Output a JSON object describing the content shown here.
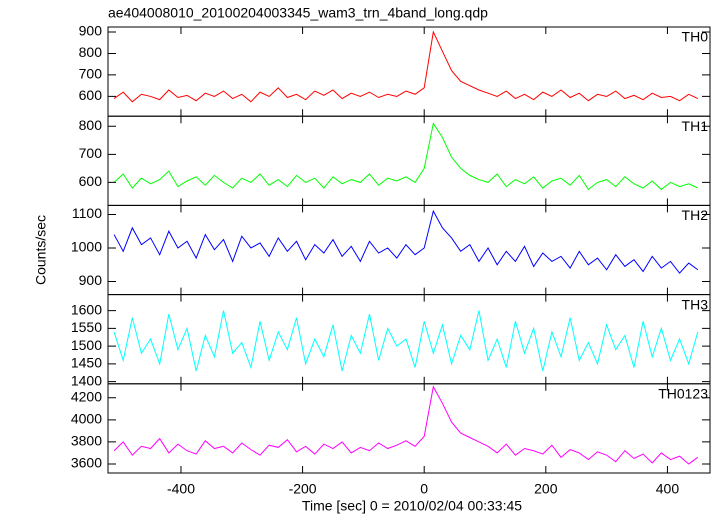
{
  "title": "ae404008010_20100204003345_wam3_trn_4band_long.qdp",
  "ylabel": "Counts/sec",
  "xlabel": "Time [sec] 0 = 2010/02/04 00:33:45",
  "chart_data": [
    {
      "type": "line",
      "x": [
        -510,
        -495,
        -480,
        -465,
        -450,
        -435,
        -420,
        -405,
        -390,
        -375,
        -360,
        -345,
        -330,
        -315,
        -300,
        -285,
        -270,
        -255,
        -240,
        -225,
        -210,
        -195,
        -180,
        -165,
        -150,
        -135,
        -120,
        -105,
        -90,
        -75,
        -60,
        -45,
        -30,
        -15,
        0,
        15,
        30,
        45,
        60,
        75,
        90,
        105,
        120,
        135,
        150,
        165,
        180,
        195,
        210,
        225,
        240,
        255,
        270,
        285,
        300,
        315,
        330,
        345,
        360,
        375,
        390,
        405,
        420,
        435,
        450
      ],
      "series": [
        {
          "name": "TH0",
          "color": "#ff0000",
          "values": [
            590,
            620,
            575,
            610,
            600,
            585,
            630,
            595,
            605,
            580,
            615,
            600,
            625,
            590,
            610,
            575,
            620,
            600,
            640,
            595,
            610,
            585,
            625,
            605,
            630,
            590,
            615,
            600,
            620,
            595,
            610,
            600,
            625,
            610,
            640,
            900,
            810,
            720,
            670,
            650,
            630,
            615,
            600,
            625,
            590,
            610,
            585,
            620,
            600,
            630,
            595,
            615,
            580,
            610,
            600,
            625,
            590,
            605,
            585,
            615,
            595,
            600,
            580,
            610,
            590
          ]
        }
      ],
      "xlim": [
        -520,
        470
      ],
      "xticks": [
        -400,
        -200,
        0,
        200,
        400
      ],
      "ylim": [
        508,
        923
      ],
      "yticks": [
        600,
        700,
        800,
        900
      ]
    },
    {
      "type": "line",
      "x": [
        -510,
        -495,
        -480,
        -465,
        -450,
        -435,
        -420,
        -405,
        -390,
        -375,
        -360,
        -345,
        -330,
        -315,
        -300,
        -285,
        -270,
        -255,
        -240,
        -225,
        -210,
        -195,
        -180,
        -165,
        -150,
        -135,
        -120,
        -105,
        -90,
        -75,
        -60,
        -45,
        -30,
        -15,
        0,
        15,
        30,
        45,
        60,
        75,
        90,
        105,
        120,
        135,
        150,
        165,
        180,
        195,
        210,
        225,
        240,
        255,
        270,
        285,
        300,
        315,
        330,
        345,
        360,
        375,
        390,
        405,
        420,
        435,
        450
      ],
      "series": [
        {
          "name": "TH1",
          "color": "#00ff00",
          "values": [
            600,
            630,
            580,
            615,
            595,
            610,
            640,
            585,
            605,
            620,
            590,
            625,
            600,
            580,
            615,
            600,
            630,
            590,
            610,
            585,
            625,
            600,
            615,
            580,
            620,
            595,
            610,
            600,
            630,
            590,
            615,
            605,
            620,
            600,
            650,
            810,
            760,
            690,
            650,
            625,
            610,
            600,
            630,
            585,
            610,
            595,
            620,
            580,
            605,
            615,
            590,
            625,
            575,
            600,
            610,
            585,
            620,
            595,
            580,
            605,
            575,
            600,
            585,
            595,
            580
          ]
        }
      ],
      "xlim": [
        -520,
        470
      ],
      "xticks": [
        -400,
        -200,
        0,
        200,
        400
      ],
      "ylim": [
        518,
        836
      ],
      "yticks": [
        600,
        700,
        800
      ]
    },
    {
      "type": "line",
      "x": [
        -510,
        -495,
        -480,
        -465,
        -450,
        -435,
        -420,
        -405,
        -390,
        -375,
        -360,
        -345,
        -330,
        -315,
        -300,
        -285,
        -270,
        -255,
        -240,
        -225,
        -210,
        -195,
        -180,
        -165,
        -150,
        -135,
        -120,
        -105,
        -90,
        -75,
        -60,
        -45,
        -30,
        -15,
        0,
        15,
        30,
        45,
        60,
        75,
        90,
        105,
        120,
        135,
        150,
        165,
        180,
        195,
        210,
        225,
        240,
        255,
        270,
        285,
        300,
        315,
        330,
        345,
        360,
        375,
        390,
        405,
        420,
        435,
        450
      ],
      "series": [
        {
          "name": "TH2",
          "color": "#0000ff",
          "values": [
            1040,
            990,
            1060,
            1010,
            1030,
            980,
            1050,
            1000,
            1020,
            970,
            1040,
            995,
            1025,
            960,
            1035,
            1000,
            1015,
            975,
            1030,
            990,
            1020,
            965,
            1010,
            985,
            1025,
            975,
            1005,
            960,
            1020,
            985,
            1000,
            970,
            1010,
            980,
            1000,
            1110,
            1060,
            1030,
            990,
            1010,
            960,
            1000,
            950,
            990,
            960,
            1005,
            945,
            985,
            960,
            975,
            940,
            990,
            950,
            970,
            935,
            980,
            945,
            965,
            930,
            975,
            940,
            960,
            925,
            955,
            935
          ]
        }
      ],
      "xlim": [
        -520,
        470
      ],
      "xticks": [
        -400,
        -200,
        0,
        200,
        400
      ],
      "ylim": [
        861,
        1127
      ],
      "yticks": [
        900,
        1000,
        1100
      ]
    },
    {
      "type": "line",
      "x": [
        -510,
        -495,
        -480,
        -465,
        -450,
        -435,
        -420,
        -405,
        -390,
        -375,
        -360,
        -345,
        -330,
        -315,
        -300,
        -285,
        -270,
        -255,
        -240,
        -225,
        -210,
        -195,
        -180,
        -165,
        -150,
        -135,
        -120,
        -105,
        -90,
        -75,
        -60,
        -45,
        -30,
        -15,
        0,
        15,
        30,
        45,
        60,
        75,
        90,
        105,
        120,
        135,
        150,
        165,
        180,
        195,
        210,
        225,
        240,
        255,
        270,
        285,
        300,
        315,
        330,
        345,
        360,
        375,
        390,
        405,
        420,
        435,
        450
      ],
      "series": [
        {
          "name": "TH3",
          "color": "#00ffff",
          "values": [
            1540,
            1460,
            1580,
            1480,
            1520,
            1450,
            1590,
            1490,
            1550,
            1430,
            1530,
            1470,
            1600,
            1480,
            1510,
            1440,
            1570,
            1460,
            1540,
            1490,
            1580,
            1450,
            1520,
            1470,
            1560,
            1430,
            1530,
            1480,
            1590,
            1460,
            1550,
            1500,
            1520,
            1440,
            1570,
            1480,
            1560,
            1450,
            1530,
            1490,
            1600,
            1460,
            1520,
            1440,
            1570,
            1480,
            1550,
            1430,
            1540,
            1470,
            1580,
            1460,
            1510,
            1450,
            1560,
            1490,
            1530,
            1440,
            1570,
            1470,
            1550,
            1460,
            1520,
            1450,
            1540
          ]
        }
      ],
      "xlim": [
        -520,
        470
      ],
      "xticks": [
        -400,
        -200,
        0,
        200,
        400
      ],
      "ylim": [
        1394,
        1645
      ],
      "yticks": [
        1400,
        1450,
        1500,
        1550,
        1600
      ]
    },
    {
      "type": "line",
      "x": [
        -510,
        -495,
        -480,
        -465,
        -450,
        -435,
        -420,
        -405,
        -390,
        -375,
        -360,
        -345,
        -330,
        -315,
        -300,
        -285,
        -270,
        -255,
        -240,
        -225,
        -210,
        -195,
        -180,
        -165,
        -150,
        -135,
        -120,
        -105,
        -90,
        -75,
        -60,
        -45,
        -30,
        -15,
        0,
        15,
        30,
        45,
        60,
        75,
        90,
        105,
        120,
        135,
        150,
        165,
        180,
        195,
        210,
        225,
        240,
        255,
        270,
        285,
        300,
        315,
        330,
        345,
        360,
        375,
        390,
        405,
        420,
        435,
        450
      ],
      "series": [
        {
          "name": "TH0123",
          "color": "#ff00ff",
          "values": [
            3720,
            3800,
            3680,
            3760,
            3740,
            3830,
            3700,
            3780,
            3720,
            3690,
            3810,
            3740,
            3760,
            3700,
            3790,
            3730,
            3680,
            3770,
            3750,
            3820,
            3710,
            3760,
            3690,
            3780,
            3740,
            3800,
            3700,
            3750,
            3720,
            3790,
            3740,
            3770,
            3810,
            3760,
            3850,
            4300,
            4150,
            3980,
            3880,
            3840,
            3800,
            3760,
            3700,
            3780,
            3680,
            3740,
            3720,
            3690,
            3770,
            3660,
            3730,
            3700,
            3640,
            3710,
            3680,
            3620,
            3720,
            3650,
            3690,
            3610,
            3700,
            3640,
            3670,
            3600,
            3660
          ]
        }
      ],
      "xlim": [
        -520,
        470
      ],
      "xticks": [
        -400,
        -200,
        0,
        200,
        400
      ],
      "xticklabels": true,
      "ylim": [
        3518,
        4327
      ],
      "yticks": [
        3600,
        3800,
        4000,
        4200
      ]
    }
  ]
}
